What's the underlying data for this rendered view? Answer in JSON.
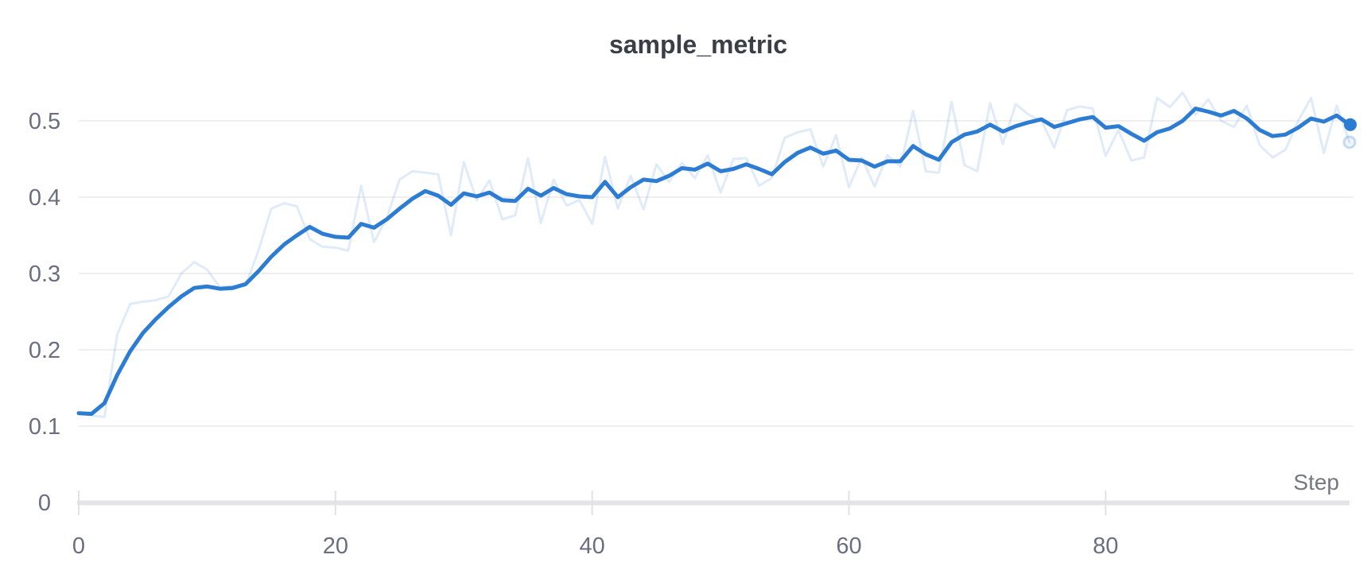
{
  "title": "sample_metric",
  "colors": {
    "background": "#ffffff",
    "line_blue": "#2d7cd4",
    "raw_line_opacity": 0.15,
    "gridline": "#eaeaed",
    "axis_baseline": "#e4e4e7",
    "tick_mark": "#e2e2e6",
    "tick_label_text": "#6b6e80",
    "axis_label_text": "#75787f",
    "title_text": "#3a3e46"
  },
  "chart_data": {
    "type": "line",
    "title": "sample_metric",
    "xlabel": "Step",
    "ylabel": "",
    "xlim": [
      0,
      99
    ],
    "ylim": [
      0,
      0.55
    ],
    "x_tick_values": [
      0,
      20,
      40,
      60,
      80
    ],
    "x_tick_labels": [
      "0",
      "20",
      "40",
      "60",
      "80"
    ],
    "y_tick_values": [
      0,
      0.1,
      0.2,
      0.3,
      0.4,
      0.5
    ],
    "y_tick_labels": [
      "0",
      "0.1",
      "0.2",
      "0.3",
      "0.4",
      "0.5"
    ],
    "grid": "horizontal-only",
    "legend_position": "none",
    "x": [
      0,
      1,
      2,
      3,
      4,
      5,
      6,
      7,
      8,
      9,
      10,
      11,
      12,
      13,
      14,
      15,
      16,
      17,
      18,
      19,
      20,
      21,
      22,
      23,
      24,
      25,
      26,
      27,
      28,
      29,
      30,
      31,
      32,
      33,
      34,
      35,
      36,
      37,
      38,
      39,
      40,
      41,
      42,
      43,
      44,
      45,
      46,
      47,
      48,
      49,
      50,
      51,
      52,
      53,
      54,
      55,
      56,
      57,
      58,
      59,
      60,
      61,
      62,
      63,
      64,
      65,
      66,
      67,
      68,
      69,
      70,
      71,
      72,
      73,
      74,
      75,
      76,
      77,
      78,
      79,
      80,
      81,
      82,
      83,
      84,
      85,
      86,
      87,
      88,
      89,
      90,
      91,
      92,
      93,
      94,
      95,
      96,
      97,
      98,
      99
    ],
    "series": [
      {
        "name": "sample_metric (raw)",
        "style": "faded",
        "endpoint_marker": "faded-dot",
        "final_value": 0.472,
        "values": [
          0.118,
          0.114,
          0.112,
          0.22,
          0.26,
          0.263,
          0.265,
          0.27,
          0.3,
          0.315,
          0.305,
          0.282,
          0.284,
          0.284,
          0.33,
          0.385,
          0.392,
          0.388,
          0.345,
          0.335,
          0.334,
          0.33,
          0.415,
          0.341,
          0.373,
          0.423,
          0.434,
          0.432,
          0.43,
          0.35,
          0.446,
          0.396,
          0.422,
          0.371,
          0.376,
          0.451,
          0.366,
          0.423,
          0.389,
          0.396,
          0.365,
          0.453,
          0.385,
          0.428,
          0.384,
          0.443,
          0.42,
          0.445,
          0.425,
          0.455,
          0.406,
          0.45,
          0.451,
          0.415,
          0.425,
          0.478,
          0.485,
          0.489,
          0.44,
          0.481,
          0.413,
          0.452,
          0.414,
          0.455,
          0.44,
          0.513,
          0.434,
          0.432,
          0.525,
          0.442,
          0.434,
          0.523,
          0.47,
          0.522,
          0.508,
          0.5,
          0.465,
          0.514,
          0.519,
          0.516,
          0.454,
          0.488,
          0.448,
          0.452,
          0.53,
          0.518,
          0.537,
          0.508,
          0.528,
          0.5,
          0.492,
          0.52,
          0.468,
          0.452,
          0.462,
          0.5,
          0.53,
          0.458,
          0.52,
          0.472
        ]
      },
      {
        "name": "sample_metric (smoothed)",
        "style": "solid",
        "endpoint_marker": "solid-dot",
        "final_value": 0.495,
        "values": [
          0.117,
          0.116,
          0.13,
          0.167,
          0.198,
          0.222,
          0.24,
          0.256,
          0.27,
          0.281,
          0.283,
          0.28,
          0.281,
          0.286,
          0.303,
          0.322,
          0.338,
          0.35,
          0.361,
          0.352,
          0.348,
          0.347,
          0.365,
          0.36,
          0.371,
          0.385,
          0.398,
          0.408,
          0.402,
          0.39,
          0.405,
          0.401,
          0.406,
          0.396,
          0.395,
          0.411,
          0.402,
          0.412,
          0.404,
          0.401,
          0.4,
          0.42,
          0.4,
          0.413,
          0.423,
          0.421,
          0.428,
          0.438,
          0.436,
          0.444,
          0.434,
          0.437,
          0.443,
          0.437,
          0.43,
          0.446,
          0.458,
          0.465,
          0.457,
          0.461,
          0.449,
          0.448,
          0.44,
          0.447,
          0.447,
          0.467,
          0.456,
          0.449,
          0.472,
          0.482,
          0.486,
          0.495,
          0.486,
          0.493,
          0.498,
          0.502,
          0.492,
          0.497,
          0.502,
          0.505,
          0.491,
          0.493,
          0.483,
          0.474,
          0.485,
          0.49,
          0.5,
          0.516,
          0.512,
          0.507,
          0.513,
          0.503,
          0.488,
          0.48,
          0.482,
          0.491,
          0.503,
          0.499,
          0.507,
          0.495
        ]
      }
    ]
  }
}
